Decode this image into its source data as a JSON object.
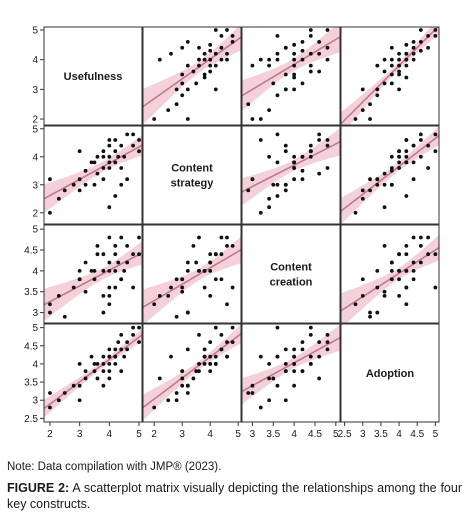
{
  "chart_data": {
    "type": "scatter",
    "variables": [
      "Usefulness",
      "Content strategy",
      "Content creation",
      "Adoption"
    ],
    "diagonal_labels": [
      [
        "Usefulness"
      ],
      [
        "Content",
        "strategy"
      ],
      [
        "Content",
        "creation"
      ],
      [
        "Adoption"
      ]
    ],
    "ranges": [
      [
        1.8,
        5.1
      ],
      [
        1.6,
        5.1
      ],
      [
        2.75,
        5.1
      ],
      [
        2.4,
        5.1
      ]
    ],
    "ticks": [
      [
        2,
        3,
        4,
        5
      ],
      [
        2,
        3,
        4,
        5
      ],
      [
        3,
        3.5,
        4,
        4.5,
        5
      ],
      [
        2.5,
        3,
        3.5,
        4,
        4.5,
        5
      ]
    ],
    "tick_labels": [
      [
        "2",
        "3",
        "4",
        "5"
      ],
      [
        "2",
        "3",
        "4",
        "5"
      ],
      [
        "3",
        "3.5",
        "4",
        "4.5",
        "5"
      ],
      [
        "2.5",
        "3",
        "3.5",
        "4",
        "4.5",
        "5"
      ]
    ],
    "fit_color": "#c07a8e",
    "band_color": "#f2c9d4",
    "point_color": "#111111",
    "observations": [
      [
        2.0,
        2.0,
        3.2,
        2.8
      ],
      [
        2.3,
        2.5,
        3.4,
        3.0
      ],
      [
        2.5,
        2.8,
        2.9,
        3.2
      ],
      [
        2.8,
        3.0,
        3.6,
        3.4
      ],
      [
        3.0,
        2.8,
        3.8,
        3.0
      ],
      [
        3.0,
        3.2,
        4.0,
        3.4
      ],
      [
        3.2,
        3.0,
        3.5,
        3.6
      ],
      [
        3.2,
        3.5,
        4.2,
        3.8
      ],
      [
        3.5,
        3.0,
        3.8,
        3.8
      ],
      [
        3.5,
        3.8,
        4.0,
        4.0
      ],
      [
        3.6,
        3.4,
        4.6,
        3.6
      ],
      [
        3.8,
        3.6,
        4.0,
        3.8
      ],
      [
        3.8,
        4.0,
        3.4,
        4.0
      ],
      [
        3.8,
        4.2,
        4.4,
        4.2
      ],
      [
        4.0,
        3.6,
        4.0,
        4.0
      ],
      [
        4.0,
        4.0,
        4.2,
        3.8
      ],
      [
        4.0,
        3.8,
        3.6,
        4.2
      ],
      [
        4.0,
        4.4,
        4.8,
        4.4
      ],
      [
        4.0,
        4.6,
        3.2,
        4.2
      ],
      [
        4.2,
        3.8,
        4.0,
        4.4
      ],
      [
        4.2,
        4.2,
        4.4,
        4.0
      ],
      [
        4.2,
        2.6,
        3.6,
        4.2
      ],
      [
        4.3,
        4.0,
        4.2,
        4.6
      ],
      [
        4.4,
        4.4,
        3.8,
        4.4
      ],
      [
        4.4,
        3.6,
        4.8,
        4.8
      ],
      [
        4.5,
        4.0,
        4.0,
        4.2
      ],
      [
        4.6,
        4.8,
        4.6,
        4.6
      ],
      [
        4.6,
        3.2,
        4.2,
        4.4
      ],
      [
        4.8,
        4.4,
        4.4,
        4.8
      ],
      [
        4.8,
        4.8,
        3.6,
        5.0
      ],
      [
        5.0,
        4.6,
        4.8,
        4.6
      ],
      [
        5.0,
        4.2,
        4.4,
        5.0
      ],
      [
        2.0,
        3.2,
        3.0,
        3.2
      ],
      [
        4.0,
        2.2,
        3.4,
        3.6
      ],
      [
        3.0,
        4.2,
        3.8,
        4.0
      ],
      [
        3.4,
        3.8,
        4.0,
        4.2
      ],
      [
        3.8,
        3.2,
        3.0,
        3.4
      ],
      [
        4.2,
        4.6,
        4.6,
        4.2
      ],
      [
        3.6,
        4.0,
        4.4,
        4.0
      ],
      [
        4.4,
        3.0,
        3.8,
        3.8
      ]
    ]
  },
  "note": "Note: Data compilation with JMP® (2023).",
  "caption": {
    "label": "FIGURE 2:",
    "text": " A scatterplot matrix visually depicting the relationships among the four key constructs."
  }
}
